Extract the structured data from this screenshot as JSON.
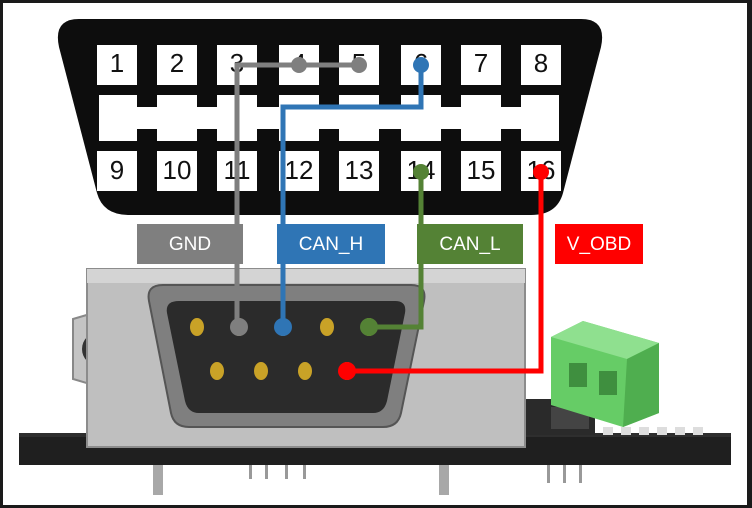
{
  "obd_connector": {
    "top_pins": [
      "1",
      "2",
      "3",
      "4",
      "5",
      "6",
      "7",
      "8"
    ],
    "bottom_pins": [
      "9",
      "10",
      "11",
      "12",
      "13",
      "14",
      "15",
      "16"
    ]
  },
  "signals": {
    "gnd": {
      "label": "GND",
      "color": "#7f7f7f"
    },
    "can_h": {
      "label": "CAN_H",
      "color": "#2f75b5"
    },
    "can_l": {
      "label": "CAN_L",
      "color": "#548235"
    },
    "v_obd": {
      "label": "V_OBD",
      "color": "#ff0000"
    }
  },
  "colors": {
    "connector_body": "#0d0d0d",
    "db9_metal": "#bfbfbf",
    "db9_insert": "#2b2b2b",
    "pin_gold": "#c9a227",
    "pcb": "#1f1f1f",
    "terminal_block": "#66cc66"
  },
  "icons": [
    "obd2-connector-icon",
    "db9-connector-icon",
    "screw-terminal-icon",
    "pcb-board-icon"
  ]
}
